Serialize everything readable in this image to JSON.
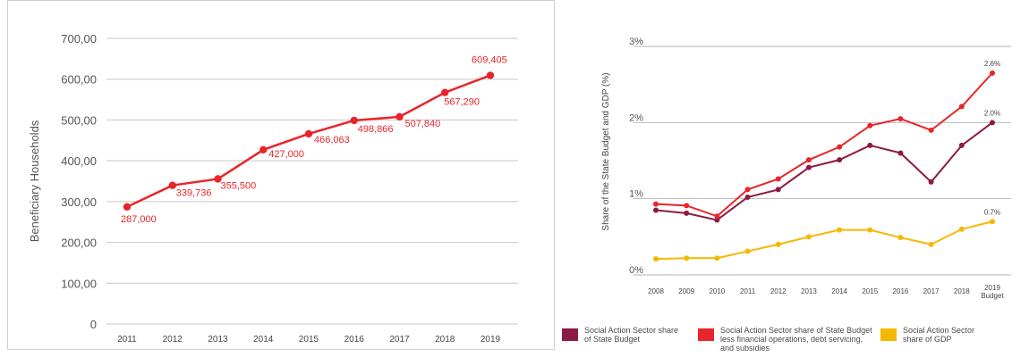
{
  "chart_data": [
    {
      "type": "line",
      "ylabel": "Beneficiary Households",
      "xlabel": "",
      "categories": [
        "2011",
        "2012",
        "2013",
        "2014",
        "2015",
        "2016",
        "2017",
        "2018",
        "2019"
      ],
      "yticks": [
        "0",
        "100,00",
        "200,00",
        "300,00",
        "400,00",
        "500,00",
        "600,00",
        "700,00"
      ],
      "ylim": [
        0,
        700000
      ],
      "grid": true,
      "series": [
        {
          "values": [
            287000,
            339736,
            355500,
            427000,
            466063,
            498866,
            507840,
            567290,
            609405
          ],
          "labels": [
            "287,000",
            "339,736",
            "355,500",
            "427,000",
            "466,063",
            "498,866",
            "507,840",
            "567,290",
            "609,405"
          ],
          "color": "#e8252b"
        }
      ]
    },
    {
      "type": "line",
      "ylabel": "Share of the State Budget and GDP (%)",
      "xlabel": "",
      "categories": [
        "2008",
        "2009",
        "2010",
        "2011",
        "2012",
        "2013",
        "2014",
        "2015",
        "2016",
        "2017",
        "2018",
        "2019 Budget"
      ],
      "yticks": [
        "0%",
        "1%",
        "2%",
        "3%"
      ],
      "ylim": [
        0,
        3
      ],
      "grid": true,
      "legend_position": "bottom",
      "series": [
        {
          "name": "Social Action Sector share of State Budget",
          "values": [
            0.85,
            0.81,
            0.72,
            1.02,
            1.12,
            1.41,
            1.51,
            1.7,
            1.6,
            1.22,
            1.7,
            2.0
          ],
          "end_label": "2.0%",
          "color": "#8b1a45"
        },
        {
          "name": "Social Action Sector share of State Budget less financial operations, debt servicing, and subsidies",
          "values": [
            0.93,
            0.91,
            0.77,
            1.12,
            1.26,
            1.51,
            1.68,
            1.96,
            2.05,
            1.9,
            2.21,
            2.65
          ],
          "end_label": "2.6%",
          "color": "#e8252b"
        },
        {
          "name": "Social Action Sector share of GDP",
          "values": [
            0.21,
            0.22,
            0.22,
            0.31,
            0.4,
            0.5,
            0.59,
            0.59,
            0.49,
            0.4,
            0.6,
            0.7
          ],
          "end_label": "0.7%",
          "color": "#f5b800"
        }
      ]
    }
  ]
}
